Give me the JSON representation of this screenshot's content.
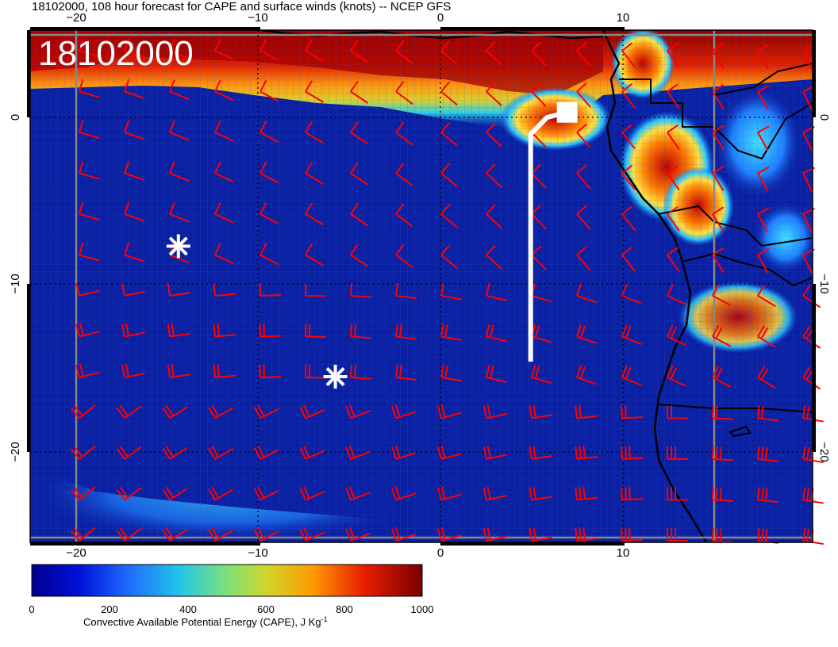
{
  "title": "18102000, 108 hour forecast for CAPE and surface winds (knots) -- NCEP GFS",
  "stamp": "18102000",
  "axes": {
    "top_ticks": [
      "−20",
      "−10",
      "0",
      "10"
    ],
    "bottom_ticks": [
      "−20",
      "−10",
      "0",
      "10"
    ],
    "left_ticks": [
      "0",
      "−10",
      "−20"
    ],
    "right_ticks": [
      "0",
      "−10",
      "−20"
    ],
    "lon_range": [
      -22.5,
      20.0
    ],
    "lat_range": [
      -24.5,
      5.0
    ]
  },
  "colorbar": {
    "ticks": [
      "0",
      "200",
      "400",
      "600",
      "800",
      "1000"
    ],
    "title_main": "Convective Available Potential Energy (CAPE), J Kg",
    "title_sup": "-1",
    "min": 0,
    "max": 1000
  },
  "colors": {
    "ocean": "#0a21a3",
    "wind_barb": "#ff0000",
    "marker": "#ffffff",
    "grid": "#8a8a8a"
  },
  "markers": [
    {
      "name": "asterisk-marker",
      "lon": -14.4,
      "lat": -7.7
    },
    {
      "name": "asterisk-marker",
      "lon": -5.8,
      "lat": -15.5
    }
  ],
  "track": {
    "name": "flight-track",
    "points": [
      [
        4.9,
        -14.6
      ],
      [
        4.9,
        -1.0
      ],
      [
        5.8,
        0.0
      ],
      [
        6.9,
        0.3
      ]
    ]
  },
  "track_end_box": {
    "lon": 6.9,
    "lat": 0.3
  }
}
